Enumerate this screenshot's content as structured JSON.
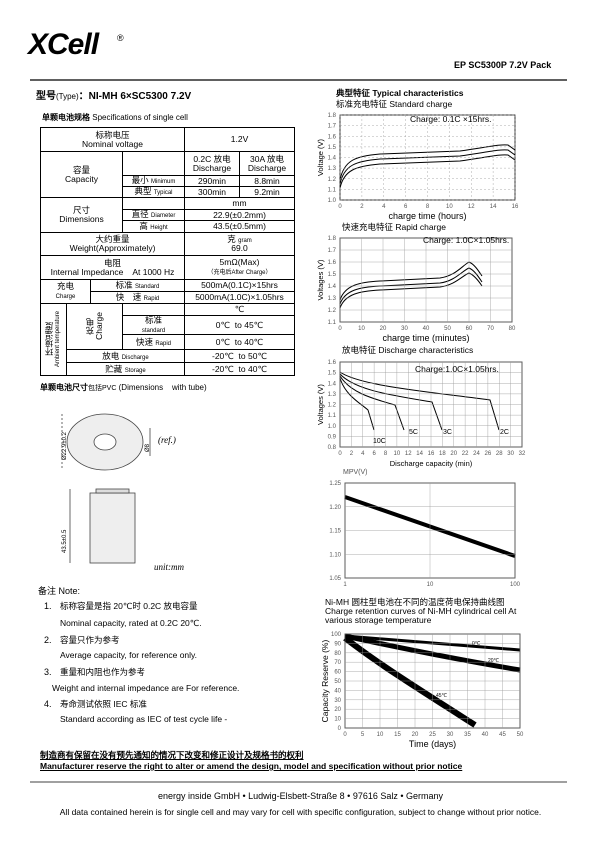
{
  "header": {
    "logo": "XCell",
    "logo_mark": "®",
    "model": "EP SC5300P 7.2V Pack"
  },
  "type_line": {
    "label_zh": "型号",
    "label_en": "(Type)",
    "value": "：NI-MH 6×SC5300 7.2V"
  },
  "spec_title": {
    "zh": "单颗电池规格",
    "en": "Specifications of single cell"
  },
  "spec_table": {
    "nominal_voltage": {
      "zh": "标称电压",
      "en": "Nominal voltage",
      "value": "1.2V"
    },
    "capacity": {
      "zh": "容量",
      "en": "Capacity",
      "col1_zh": "0.2C 放电",
      "col1_en": "Discharge",
      "col2_zh": "30A 放电",
      "col2_en": "Discharge",
      "min_zh": "最小",
      "min_en": "Minimum",
      "min_1": "290min",
      "min_2": "8.8min",
      "typ_zh": "典型",
      "typ_en": "Typical",
      "typ_1": "300min",
      "typ_2": "9.2min"
    },
    "dimensions": {
      "zh": "尺寸",
      "en": "Dimensions",
      "unit": "mm",
      "dia_zh": "直径",
      "dia_en": "Diameter",
      "dia": "22.9(±0.2mm)",
      "h_zh": "高",
      "h_en": "Height",
      "h": "43.5(±0.5mm)"
    },
    "weight": {
      "zh": "大约重量",
      "en": "Weight(Approximately)",
      "unit_zh": "克",
      "unit_en": "gram",
      "value": "69.0"
    },
    "impedance": {
      "zh": "电阻",
      "en": "Internal Impedance    At 1000 Hz",
      "value": "5mΩ(Max)",
      "note_zh": "（充电后",
      "note_en": "After Charge）"
    },
    "charge": {
      "zh": "充电",
      "en": "Charge",
      "std_zh": "标准",
      "std_en": "Standard",
      "std": "500mA(0.1C)×15hrs",
      "rapid_zh": "快　速",
      "rapid_en": "Rapid",
      "rapid": "5000mA(1.0C)×1.05hrs"
    },
    "ambient": {
      "zh": "环境温度",
      "en": "Ambient temperature",
      "charge_zh": "充电",
      "charge_en": "Charge",
      "unit": "℃",
      "std_zh": "标准",
      "std_en": "standard",
      "std": "0℃  to 45℃",
      "rapid_zh": "快速",
      "rapid_en": "Rapid",
      "rapid": "0℃  to 40℃",
      "dis_zh": "放电",
      "dis_en": "Discharge",
      "dis": "-20℃  to 50℃",
      "sto_zh": "贮藏",
      "sto_en": "Storage",
      "sto": "-20℃  to 40℃"
    }
  },
  "dim_title": {
    "zh": "单颗电池尺寸",
    "zh2": "包括PVC",
    "en": "(Dimensions    with tube)"
  },
  "drawing": {
    "diameter": "Ø22.9±0.2",
    "ref": "(ref.)",
    "inner": "Ø8",
    "height": "43.5±0.5",
    "unit": "unit:mm"
  },
  "notes": {
    "title": "备注 Note:",
    "items": [
      {
        "num": "1.",
        "zh": "标称容量是指 20℃时 0.2C 放电容量",
        "en": "Nominal capacity, rated at 0.2C 20℃."
      },
      {
        "num": "2.",
        "zh": "容量只作为参考",
        "en": "Average capacity, for reference only."
      },
      {
        "num": "3.",
        "zh": "重量和内阻也作为参考",
        "en": "Weight and internal impedance are For reference."
      },
      {
        "num": "4.",
        "zh": "寿命测试依照 IEC 标准",
        "en": "Standard according as IEC of test cycle life -"
      }
    ]
  },
  "characteristics_title": {
    "zh": "典型特征",
    "en": "Typical characteristics"
  },
  "charts": [
    {
      "title": "标准充电特征 Standard charge",
      "annotation": "Charge: 0.1C  ×15hrs.",
      "ylabel": "Voltage (V)",
      "xlabel": "charge time (hours)",
      "yticks": [
        "1.0",
        "1.1",
        "1.2",
        "1.3",
        "1.4",
        "1.5",
        "1.6",
        "1.7",
        "1.8"
      ],
      "xticks": [
        "0",
        "2",
        "4",
        "6",
        "8",
        "10",
        "12",
        "14",
        "16"
      ]
    },
    {
      "title": "快速充电特征 Rapid charge",
      "annotation": "Charge: 1.0C×1.05hrs.",
      "ylabel": "Voltages (V)",
      "xlabel": "charge time (minutes)",
      "yticks": [
        "1.1",
        "1.2",
        "1.3",
        "1.4",
        "1.5",
        "1.6",
        "1.7",
        "1.8"
      ],
      "xticks": [
        "0",
        "10",
        "20",
        "30",
        "40",
        "50",
        "60",
        "70",
        "80"
      ]
    },
    {
      "title": "放电特征 Discharge characteristics",
      "annotation": "Charge:1.0C×1.05hrs.",
      "ylabel": "Voltages (V)",
      "xlabel": "Discharge capacity (min)",
      "yticks": [
        "0.8",
        "0.9",
        "1.0",
        "1.1",
        "1.2",
        "1.3",
        "1.4",
        "1.5",
        "1.6"
      ],
      "xticks": [
        "0",
        "2",
        "4",
        "6",
        "8",
        "10",
        "12",
        "14",
        "16",
        "18",
        "20",
        "22",
        "24",
        "26",
        "28",
        "30",
        "32"
      ],
      "curve_labels": [
        "10C",
        "5C",
        "3C",
        "2C"
      ]
    },
    {
      "ylabel": "MPV(V)",
      "yticks": [
        "1.05",
        "1.10",
        "1.15",
        "1.20",
        "1.25"
      ],
      "xticks": [
        "1",
        "10",
        "100"
      ]
    },
    {
      "title": [
        "Ni-MH 圆柱型电池在不同的温度荷电保持曲线图",
        "Charge retention curves of Ni-MH cylindrical cell At",
        "various storage temperature"
      ],
      "ylabel": "Capacity Reserve (%)",
      "xlabel": "Time (days)",
      "yticks": [
        "0",
        "10",
        "20",
        "30",
        "40",
        "50",
        "60",
        "70",
        "80",
        "90",
        "100"
      ],
      "xticks": [
        "0",
        "5",
        "10",
        "15",
        "20",
        "25",
        "30",
        "35",
        "40",
        "45",
        "50"
      ],
      "curve_labels": [
        "0℃",
        "20℃",
        "45℃"
      ]
    }
  ],
  "footer": {
    "notice_zh": "制造商有保留在没有预先通知的情况下改变和修正设计及规格书的权利",
    "notice_en": "Manufacturer reserve the right to alter or amend the design, model and specification without prior notice",
    "address": "energy inside GmbH • Ludwig-Elsbett-Straße 8 • 97616 Salz • Germany",
    "disclaimer": "All data contained herein is for single cell and may vary for cell with specific configuration, subject to change without prior notice."
  }
}
